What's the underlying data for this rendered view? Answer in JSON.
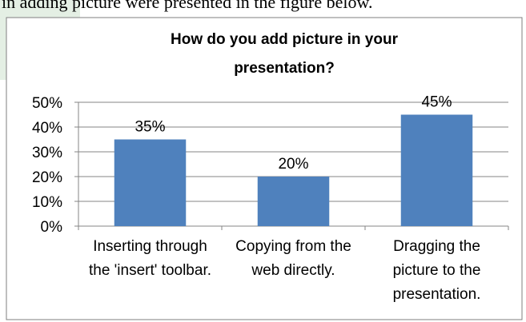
{
  "page_text": "in adding picture were presented in the figure below.",
  "chart_data": {
    "type": "bar",
    "title": "How do you add picture in your presentation?",
    "categories": [
      "Inserting through the 'insert' toolbar.",
      "Copying from the web directly.",
      "Dragging the picture to the presentation."
    ],
    "values": [
      35,
      20,
      45
    ],
    "value_labels": [
      "35%",
      "20%",
      "45%"
    ],
    "color": "#4f81bd",
    "ylim": [
      0,
      50
    ],
    "yticks": [
      {
        "value": 0,
        "label": "0%"
      },
      {
        "value": 10,
        "label": "10%"
      },
      {
        "value": 20,
        "label": "20%"
      },
      {
        "value": 30,
        "label": "30%"
      },
      {
        "value": 40,
        "label": "40%"
      },
      {
        "value": 50,
        "label": "50%"
      }
    ],
    "grid": true
  }
}
